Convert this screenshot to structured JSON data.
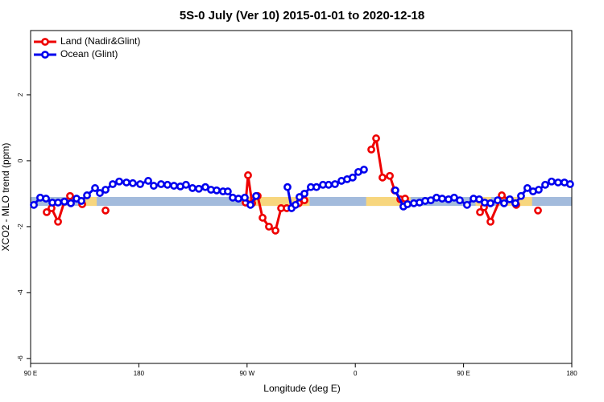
{
  "chart_data": {
    "type": "line",
    "title": "5S-0 July (Ver 10)   2015-01-01 to 2020-12-18",
    "x_label": "Longitude (deg E)",
    "y_label": "XCO2 - MLO trend (ppm)",
    "xlim": [
      90,
      540
    ],
    "ylim": [
      -6.15,
      3.95
    ],
    "xticks": [
      {
        "value": 90,
        "label": "90 E"
      },
      {
        "value": 180,
        "label": "180"
      },
      {
        "value": 270,
        "label": "90 W"
      },
      {
        "value": 360,
        "label": "0"
      },
      {
        "value": 450,
        "label": "90 E"
      },
      {
        "value": 540,
        "label": "180"
      }
    ],
    "yticks": [
      -6,
      -4,
      -2,
      0,
      2
    ],
    "legend": "topleft",
    "mask_range": [
      -1.37,
      -1.1
    ],
    "mask_color": "#a3bbdc",
    "land_color": "#f7d67e",
    "land_regions": [
      [
        131.5,
        145
      ],
      [
        269,
        322
      ],
      [
        369,
        406
      ],
      [
        460,
        473
      ],
      [
        480,
        507
      ]
    ],
    "series": [
      {
        "name": "Land (Nadir&Glint)",
        "color": "#ee0000",
        "x": [
          103.4,
          107.4,
          112.8,
          118.1,
          122.8,
          null,
          132.9,
          null,
          152.3,
          null,
          268.8,
          270.8,
          274.2,
          278.8,
          282.9,
          288.2,
          293.6,
          298.3,
          303,
          313,
          317.7,
          null,
          373.3,
          377.3,
          382.6,
          388.7,
          392.7,
          397.4,
          401.4,
          null,
          463.7,
          467,
          472.4,
          481.8,
          493.8,
          null,
          511.9
        ],
        "values": [
          -1.56,
          -1.44,
          -1.85,
          -1.24,
          -1.07,
          null,
          -1.32,
          null,
          -1.51,
          null,
          -1.27,
          -0.44,
          -1.29,
          -1.07,
          -1.73,
          -2.0,
          -2.12,
          -1.44,
          -1.44,
          -1.29,
          -1.2,
          null,
          0.34,
          0.68,
          -0.51,
          -0.46,
          -0.9,
          -1.17,
          -1.15,
          null,
          -1.56,
          -1.41,
          -1.85,
          -1.05,
          -1.34,
          null,
          -1.51
        ]
      },
      {
        "name": "Ocean (Glint)",
        "color": "#0000ee",
        "x": [
          92.7,
          98.0,
          102.8,
          108.1,
          112.8,
          118.1,
          123.5,
          128.2,
          132.2,
          136.9,
          143.6,
          147.6,
          152.3,
          158.3,
          163.7,
          169.7,
          175,
          181.1,
          187.8,
          192.4,
          198.5,
          203.8,
          209.2,
          214.5,
          219.2,
          224.6,
          229.9,
          235.3,
          240,
          244.7,
          250,
          254,
          258.1,
          262.8,
          268.1,
          272.8,
          277.5,
          null,
          303.6,
          307,
          310.3,
          313.6,
          317.7,
          323,
          327.7,
          333.1,
          337.8,
          343.1,
          348.5,
          353.2,
          357.8,
          362.5,
          367.2,
          null,
          393.3,
          400,
          403.4,
          408.7,
          413.4,
          418.1,
          422.8,
          427.5,
          432.2,
          437.5,
          442.2,
          446.9,
          452.9,
          458.3,
          463,
          467.6,
          472.4,
          478.4,
          483.7,
          488.4,
          493.1,
          497.8,
          503.1,
          507.8,
          512.5,
          517.9,
          523.2,
          528.6,
          533.9,
          538.6
        ],
        "values": [
          -1.34,
          -1.12,
          -1.15,
          -1.27,
          -1.27,
          -1.24,
          -1.29,
          -1.15,
          -1.22,
          -1.05,
          -0.83,
          -0.98,
          -0.88,
          -0.71,
          -0.63,
          -0.66,
          -0.68,
          -0.71,
          -0.61,
          -0.76,
          -0.71,
          -0.73,
          -0.76,
          -0.78,
          -0.73,
          -0.83,
          -0.85,
          -0.8,
          -0.88,
          -0.9,
          -0.93,
          -0.93,
          -1.12,
          -1.15,
          -1.12,
          -1.34,
          -1.07,
          null,
          -0.8,
          -1.44,
          -1.34,
          -1.1,
          -1.0,
          -0.8,
          -0.8,
          -0.73,
          -0.73,
          -0.71,
          -0.61,
          -0.56,
          -0.51,
          -0.34,
          -0.27,
          null,
          -0.9,
          -1.39,
          -1.32,
          -1.29,
          -1.27,
          -1.22,
          -1.2,
          -1.12,
          -1.15,
          -1.17,
          -1.12,
          -1.2,
          -1.34,
          -1.15,
          -1.17,
          -1.27,
          -1.29,
          -1.2,
          -1.29,
          -1.17,
          -1.29,
          -1.07,
          -0.83,
          -0.93,
          -0.88,
          -0.73,
          -0.63,
          -0.66,
          -0.66,
          -0.71
        ]
      }
    ]
  }
}
